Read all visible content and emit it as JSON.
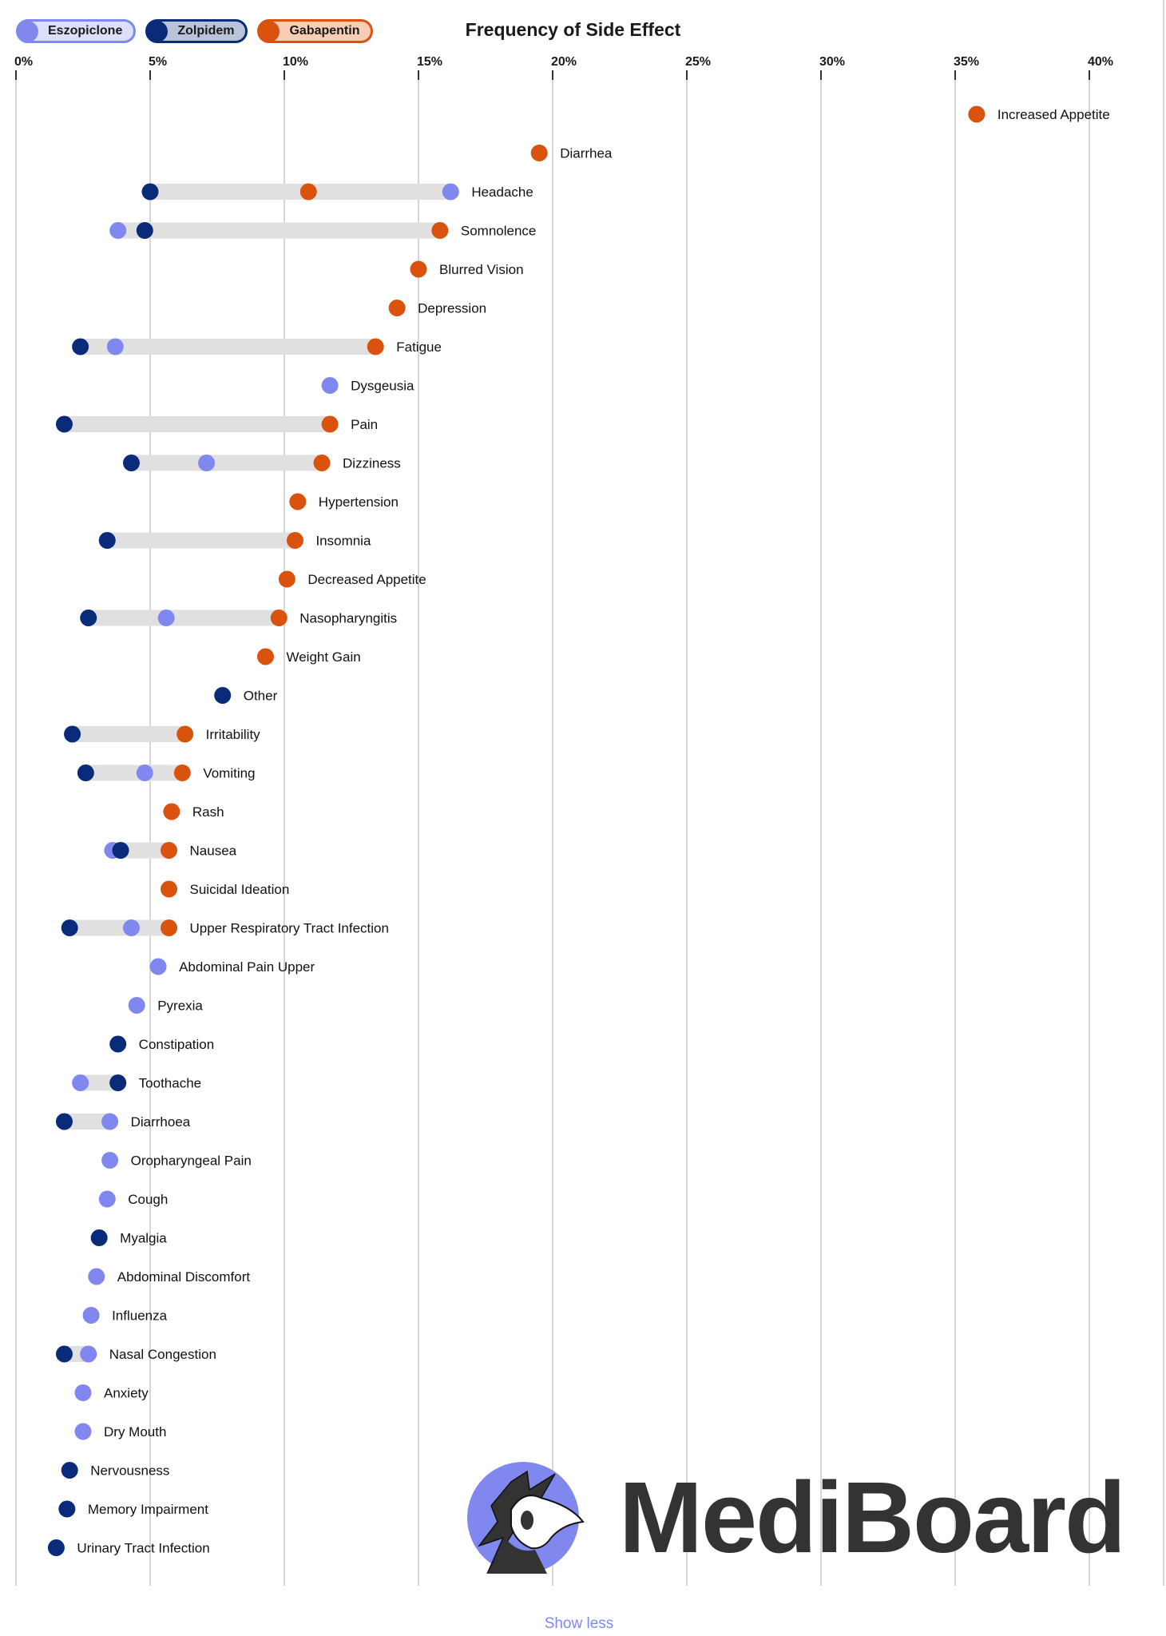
{
  "legend": [
    {
      "name": "Eszopiclone",
      "color": "#8088f0",
      "bg": "#dcdff9"
    },
    {
      "name": "Zolpidem",
      "color": "#0a2a7a",
      "bg": "#b9c3d9"
    },
    {
      "name": "Gabapentin",
      "color": "#d9530e",
      "bg": "#f7cdb5"
    }
  ],
  "chart_data": {
    "type": "dot-range",
    "title": "Frequency of Side Effect",
    "xlim": [
      0,
      40
    ],
    "x_ticks": [
      "0%",
      "5%",
      "10%",
      "15%",
      "20%",
      "25%",
      "30%",
      "35%",
      "40%"
    ],
    "grid": true,
    "legend_position": "top-left",
    "series_names": [
      "Eszopiclone",
      "Zolpidem",
      "Gabapentin"
    ],
    "rows": [
      {
        "label": "Increased Appetite",
        "Eszopiclone": null,
        "Zolpidem": null,
        "Gabapentin": 35.8
      },
      {
        "label": "Diarrhea",
        "Eszopiclone": null,
        "Zolpidem": null,
        "Gabapentin": 19.5
      },
      {
        "label": "Headache",
        "Eszopiclone": 16.2,
        "Zolpidem": 5.0,
        "Gabapentin": 10.9
      },
      {
        "label": "Somnolence",
        "Eszopiclone": 3.8,
        "Zolpidem": 4.8,
        "Gabapentin": 15.8
      },
      {
        "label": "Blurred Vision",
        "Eszopiclone": null,
        "Zolpidem": null,
        "Gabapentin": 15.0
      },
      {
        "label": "Depression",
        "Eszopiclone": null,
        "Zolpidem": null,
        "Gabapentin": 14.2
      },
      {
        "label": "Fatigue",
        "Eszopiclone": 3.7,
        "Zolpidem": 2.4,
        "Gabapentin": 13.4
      },
      {
        "label": "Dysgeusia",
        "Eszopiclone": 11.7,
        "Zolpidem": null,
        "Gabapentin": null
      },
      {
        "label": "Pain",
        "Eszopiclone": null,
        "Zolpidem": 1.8,
        "Gabapentin": 11.7
      },
      {
        "label": "Dizziness",
        "Eszopiclone": 7.1,
        "Zolpidem": 4.3,
        "Gabapentin": 11.4
      },
      {
        "label": "Hypertension",
        "Eszopiclone": null,
        "Zolpidem": null,
        "Gabapentin": 10.5
      },
      {
        "label": "Insomnia",
        "Eszopiclone": null,
        "Zolpidem": 3.4,
        "Gabapentin": 10.4
      },
      {
        "label": "Decreased Appetite",
        "Eszopiclone": null,
        "Zolpidem": null,
        "Gabapentin": 10.1
      },
      {
        "label": "Nasopharyngitis",
        "Eszopiclone": 5.6,
        "Zolpidem": 2.7,
        "Gabapentin": 9.8
      },
      {
        "label": "Weight Gain",
        "Eszopiclone": null,
        "Zolpidem": null,
        "Gabapentin": 9.3
      },
      {
        "label": "Other",
        "Eszopiclone": null,
        "Zolpidem": 7.7,
        "Gabapentin": null
      },
      {
        "label": "Irritability",
        "Eszopiclone": null,
        "Zolpidem": 2.1,
        "Gabapentin": 6.3
      },
      {
        "label": "Vomiting",
        "Eszopiclone": 4.8,
        "Zolpidem": 2.6,
        "Gabapentin": 6.2
      },
      {
        "label": "Rash",
        "Eszopiclone": null,
        "Zolpidem": null,
        "Gabapentin": 5.8
      },
      {
        "label": "Nausea",
        "Eszopiclone": 3.6,
        "Zolpidem": 3.9,
        "Gabapentin": 5.7
      },
      {
        "label": "Suicidal Ideation",
        "Eszopiclone": null,
        "Zolpidem": null,
        "Gabapentin": 5.7
      },
      {
        "label": "Upper Respiratory Tract Infection",
        "Eszopiclone": 4.3,
        "Zolpidem": 2.0,
        "Gabapentin": 5.7
      },
      {
        "label": "Abdominal Pain Upper",
        "Eszopiclone": 5.3,
        "Zolpidem": null,
        "Gabapentin": null
      },
      {
        "label": "Pyrexia",
        "Eszopiclone": 4.5,
        "Zolpidem": null,
        "Gabapentin": null
      },
      {
        "label": "Constipation",
        "Eszopiclone": null,
        "Zolpidem": 3.8,
        "Gabapentin": null
      },
      {
        "label": "Toothache",
        "Eszopiclone": 2.4,
        "Zolpidem": 3.8,
        "Gabapentin": null
      },
      {
        "label": "Diarrhoea",
        "Eszopiclone": 3.5,
        "Zolpidem": 1.8,
        "Gabapentin": null
      },
      {
        "label": "Oropharyngeal Pain",
        "Eszopiclone": 3.5,
        "Zolpidem": null,
        "Gabapentin": null
      },
      {
        "label": "Cough",
        "Eszopiclone": 3.4,
        "Zolpidem": null,
        "Gabapentin": null
      },
      {
        "label": "Myalgia",
        "Eszopiclone": null,
        "Zolpidem": 3.1,
        "Gabapentin": null
      },
      {
        "label": "Abdominal Discomfort",
        "Eszopiclone": 3.0,
        "Zolpidem": null,
        "Gabapentin": null
      },
      {
        "label": "Influenza",
        "Eszopiclone": 2.8,
        "Zolpidem": null,
        "Gabapentin": null
      },
      {
        "label": "Nasal Congestion",
        "Eszopiclone": 2.7,
        "Zolpidem": 1.8,
        "Gabapentin": null
      },
      {
        "label": "Anxiety",
        "Eszopiclone": 2.5,
        "Zolpidem": null,
        "Gabapentin": null
      },
      {
        "label": "Dry Mouth",
        "Eszopiclone": 2.5,
        "Zolpidem": null,
        "Gabapentin": null
      },
      {
        "label": "Nervousness",
        "Eszopiclone": null,
        "Zolpidem": 2.0,
        "Gabapentin": null
      },
      {
        "label": "Memory Impairment",
        "Eszopiclone": null,
        "Zolpidem": 1.9,
        "Gabapentin": null
      },
      {
        "label": "Urinary Tract Infection",
        "Eszopiclone": null,
        "Zolpidem": 1.5,
        "Gabapentin": null
      }
    ]
  },
  "logo": {
    "text": "MediBoard",
    "accent": "#8088f0"
  },
  "show_less_label": "Show less"
}
